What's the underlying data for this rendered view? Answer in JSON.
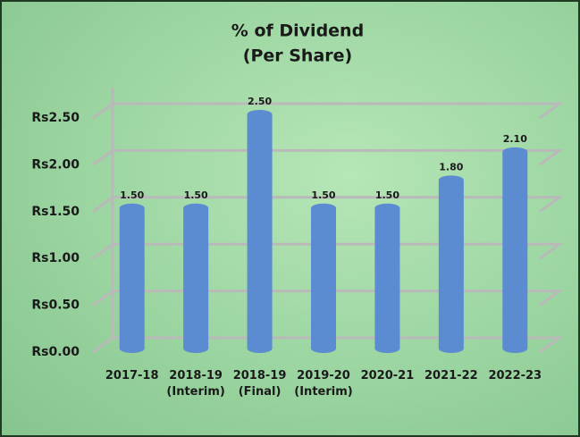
{
  "chart_data": {
    "type": "bar",
    "title": "% of Dividend",
    "subtitle": "(Per Share)",
    "categories": [
      "2017-18",
      "2018-19 (Interim)",
      "2018-19 (Final)",
      "2019-20 (Interim)",
      "2020-21",
      "2021-22",
      "2022-23"
    ],
    "values": [
      1.5,
      1.5,
      2.5,
      1.5,
      1.5,
      1.8,
      2.1
    ],
    "value_labels": [
      "1.50",
      "1.50",
      "2.50",
      "1.50",
      "1.50",
      "1.80",
      "2.10"
    ],
    "color": "#5b8bd0",
    "ylim": [
      0,
      2.5
    ],
    "yticks": [
      {
        "value": 0,
        "label": "Rs0.00"
      },
      {
        "value": 0.5,
        "label": "Rs0.50"
      },
      {
        "value": 1,
        "label": "Rs1.00"
      },
      {
        "value": 1.5,
        "label": "Rs1.50"
      },
      {
        "value": 2,
        "label": "Rs2.00"
      },
      {
        "value": 2.5,
        "label": "Rs2.50"
      }
    ],
    "grid": true
  }
}
